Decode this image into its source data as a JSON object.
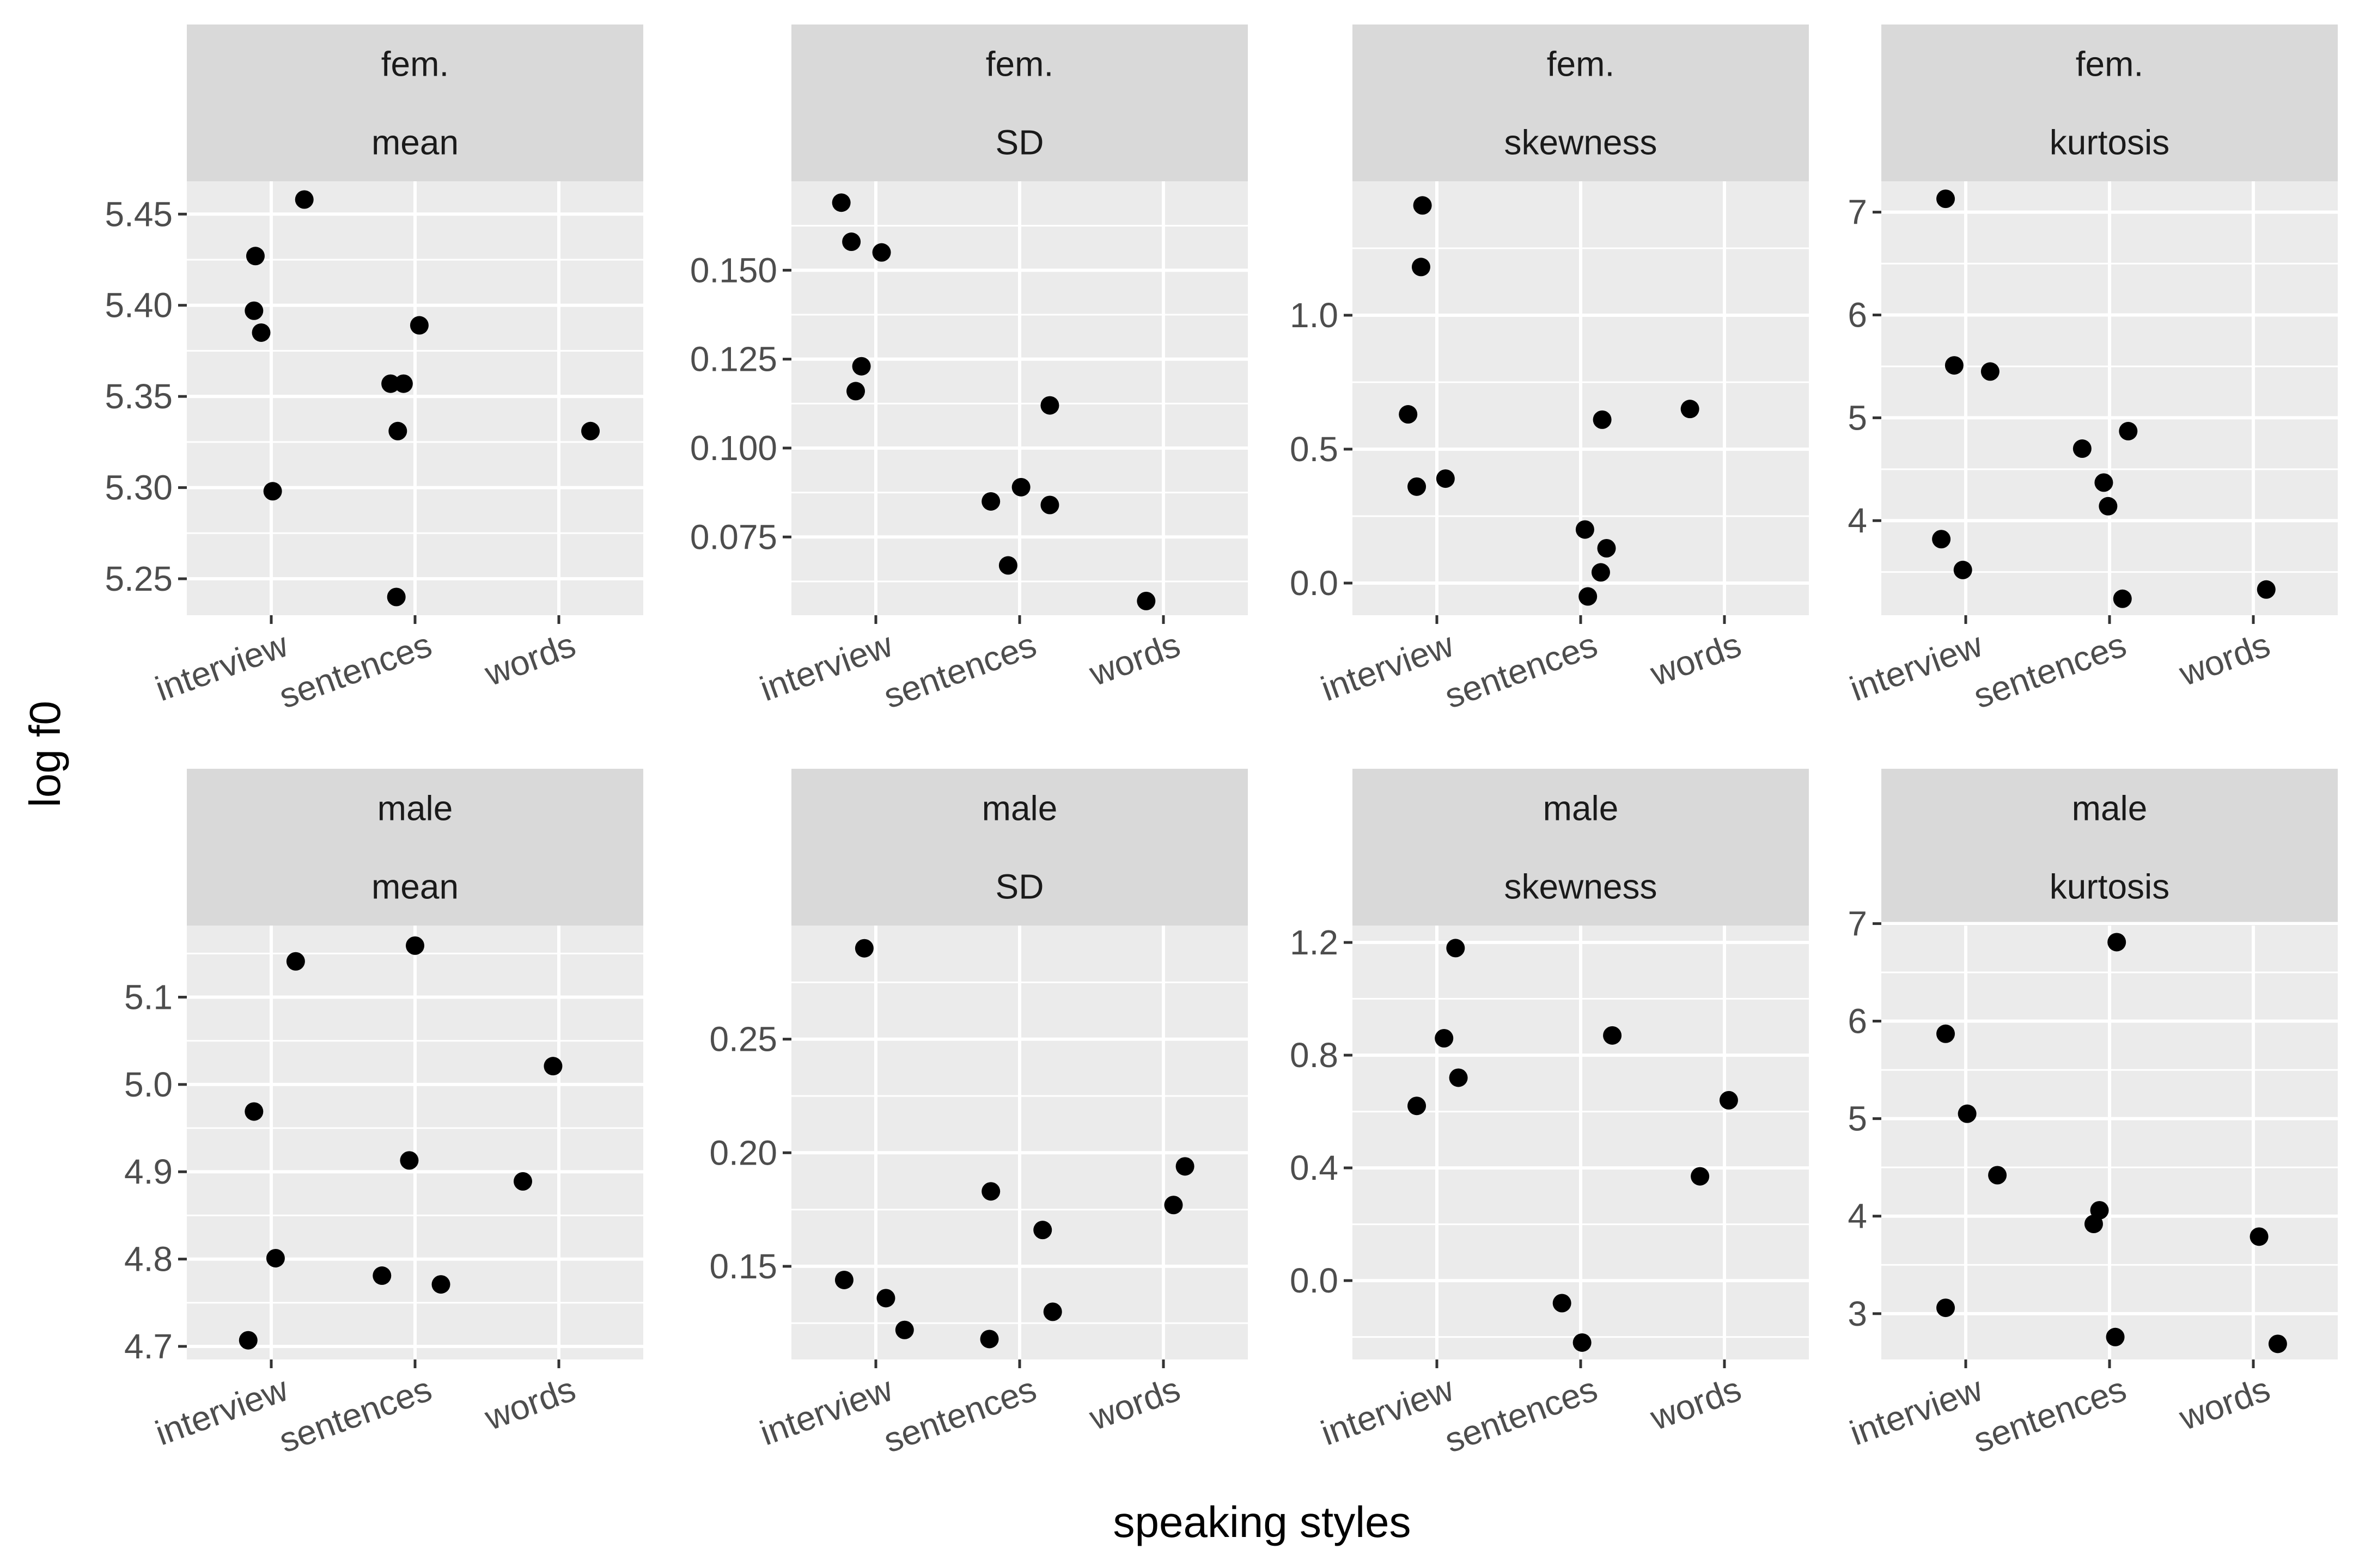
{
  "chart_data": {
    "type": "scatter",
    "xlabel": "speaking styles",
    "ylabel": "log f0",
    "categories": [
      "interview",
      "sentences",
      "words"
    ],
    "panels": [
      {
        "row_label": "fem.",
        "col_label": "mean",
        "ylim": [
          5.23,
          5.468
        ],
        "ticks": [
          5.25,
          5.3,
          5.35,
          5.4,
          5.45
        ],
        "tick_labels": [
          "5.25",
          "5.30",
          "5.35",
          "5.40",
          "5.45"
        ],
        "points": [
          {
            "category": "interview",
            "jitter": -0.11,
            "y": 5.427
          },
          {
            "category": "interview",
            "jitter": -0.12,
            "y": 5.397
          },
          {
            "category": "interview",
            "jitter": -0.07,
            "y": 5.385
          },
          {
            "category": "interview",
            "jitter": 0.23,
            "y": 5.458
          },
          {
            "category": "interview",
            "jitter": 0.01,
            "y": 5.298
          },
          {
            "category": "sentences",
            "jitter": -0.17,
            "y": 5.357
          },
          {
            "category": "sentences",
            "jitter": -0.08,
            "y": 5.357
          },
          {
            "category": "sentences",
            "jitter": -0.12,
            "y": 5.331
          },
          {
            "category": "sentences",
            "jitter": 0.03,
            "y": 5.389
          },
          {
            "category": "sentences",
            "jitter": -0.13,
            "y": 5.24
          },
          {
            "category": "words",
            "jitter": 0.22,
            "y": 5.331
          }
        ]
      },
      {
        "row_label": "fem.",
        "col_label": "SD",
        "ylim": [
          0.053,
          0.175
        ],
        "ticks": [
          0.075,
          0.1,
          0.125,
          0.15
        ],
        "tick_labels": [
          "0.075",
          "0.100",
          "0.125",
          "0.150"
        ],
        "points": [
          {
            "category": "interview",
            "jitter": -0.24,
            "y": 0.169
          },
          {
            "category": "interview",
            "jitter": -0.17,
            "y": 0.158
          },
          {
            "category": "interview",
            "jitter": 0.04,
            "y": 0.155
          },
          {
            "category": "interview",
            "jitter": -0.1,
            "y": 0.123
          },
          {
            "category": "interview",
            "jitter": -0.14,
            "y": 0.116
          },
          {
            "category": "sentences",
            "jitter": 0.21,
            "y": 0.112
          },
          {
            "category": "sentences",
            "jitter": -0.2,
            "y": 0.085
          },
          {
            "category": "sentences",
            "jitter": 0.01,
            "y": 0.089
          },
          {
            "category": "sentences",
            "jitter": 0.21,
            "y": 0.084
          },
          {
            "category": "sentences",
            "jitter": -0.08,
            "y": 0.067
          },
          {
            "category": "words",
            "jitter": -0.12,
            "y": 0.057
          }
        ]
      },
      {
        "row_label": "fem.",
        "col_label": "skewness",
        "ylim": [
          -0.12,
          1.5
        ],
        "ticks": [
          0.0,
          0.5,
          1.0
        ],
        "tick_labels": [
          "0.0",
          "0.5",
          "1.0"
        ],
        "points": [
          {
            "category": "interview",
            "jitter": -0.1,
            "y": 1.41
          },
          {
            "category": "interview",
            "jitter": -0.11,
            "y": 1.18
          },
          {
            "category": "interview",
            "jitter": -0.2,
            "y": 0.63
          },
          {
            "category": "interview",
            "jitter": -0.14,
            "y": 0.36
          },
          {
            "category": "interview",
            "jitter": 0.06,
            "y": 0.39
          },
          {
            "category": "sentences",
            "jitter": 0.15,
            "y": 0.61
          },
          {
            "category": "sentences",
            "jitter": 0.03,
            "y": 0.2
          },
          {
            "category": "sentences",
            "jitter": 0.18,
            "y": 0.13
          },
          {
            "category": "sentences",
            "jitter": 0.14,
            "y": 0.04
          },
          {
            "category": "sentences",
            "jitter": 0.05,
            "y": -0.05
          },
          {
            "category": "words",
            "jitter": -0.24,
            "y": 0.65
          }
        ]
      },
      {
        "row_label": "fem.",
        "col_label": "kurtosis",
        "ylim": [
          3.08,
          7.3
        ],
        "ticks": [
          4,
          5,
          6,
          7
        ],
        "tick_labels": [
          "4",
          "5",
          "6",
          "7"
        ],
        "points": [
          {
            "category": "interview",
            "jitter": -0.14,
            "y": 7.13
          },
          {
            "category": "interview",
            "jitter": -0.08,
            "y": 5.51
          },
          {
            "category": "interview",
            "jitter": 0.17,
            "y": 5.45
          },
          {
            "category": "interview",
            "jitter": -0.17,
            "y": 3.82
          },
          {
            "category": "interview",
            "jitter": -0.02,
            "y": 3.52
          },
          {
            "category": "sentences",
            "jitter": -0.19,
            "y": 4.7
          },
          {
            "category": "sentences",
            "jitter": 0.13,
            "y": 4.87
          },
          {
            "category": "sentences",
            "jitter": -0.04,
            "y": 4.37
          },
          {
            "category": "sentences",
            "jitter": -0.01,
            "y": 4.14
          },
          {
            "category": "sentences",
            "jitter": 0.09,
            "y": 3.24
          },
          {
            "category": "words",
            "jitter": 0.09,
            "y": 3.33
          }
        ]
      },
      {
        "row_label": "male",
        "col_label": "mean",
        "ylim": [
          4.685,
          5.182
        ],
        "ticks": [
          4.7,
          4.8,
          4.9,
          5.0,
          5.1
        ],
        "tick_labels": [
          "4.7",
          "4.8",
          "4.9",
          "5.0",
          "5.1"
        ],
        "points": [
          {
            "category": "interview",
            "jitter": 0.17,
            "y": 5.141
          },
          {
            "category": "interview",
            "jitter": -0.12,
            "y": 4.969
          },
          {
            "category": "interview",
            "jitter": 0.03,
            "y": 4.801
          },
          {
            "category": "interview",
            "jitter": -0.16,
            "y": 4.707
          },
          {
            "category": "sentences",
            "jitter": 0.0,
            "y": 5.159
          },
          {
            "category": "sentences",
            "jitter": -0.04,
            "y": 4.913
          },
          {
            "category": "sentences",
            "jitter": -0.23,
            "y": 4.781
          },
          {
            "category": "sentences",
            "jitter": 0.18,
            "y": 4.771
          },
          {
            "category": "words",
            "jitter": -0.04,
            "y": 5.021
          },
          {
            "category": "words",
            "jitter": -0.25,
            "y": 4.889
          }
        ]
      },
      {
        "row_label": "male",
        "col_label": "SD",
        "ylim": [
          0.109,
          0.3
        ],
        "ticks": [
          0.15,
          0.2,
          0.25
        ],
        "tick_labels": [
          "0.15",
          "0.20",
          "0.25"
        ],
        "points": [
          {
            "category": "interview",
            "jitter": -0.08,
            "y": 0.29
          },
          {
            "category": "interview",
            "jitter": -0.22,
            "y": 0.144
          },
          {
            "category": "interview",
            "jitter": 0.07,
            "y": 0.136
          },
          {
            "category": "interview",
            "jitter": 0.2,
            "y": 0.122
          },
          {
            "category": "sentences",
            "jitter": -0.2,
            "y": 0.183
          },
          {
            "category": "sentences",
            "jitter": 0.16,
            "y": 0.166
          },
          {
            "category": "sentences",
            "jitter": 0.23,
            "y": 0.13
          },
          {
            "category": "sentences",
            "jitter": -0.21,
            "y": 0.118
          },
          {
            "category": "words",
            "jitter": 0.15,
            "y": 0.194
          },
          {
            "category": "words",
            "jitter": 0.07,
            "y": 0.177
          }
        ]
      },
      {
        "row_label": "male",
        "col_label": "skewness",
        "ylim": [
          -0.28,
          1.26
        ],
        "ticks": [
          0.0,
          0.4,
          0.8,
          1.2
        ],
        "tick_labels": [
          "0.0",
          "0.4",
          "0.8",
          "1.2"
        ],
        "points": [
          {
            "category": "interview",
            "jitter": 0.13,
            "y": 1.18
          },
          {
            "category": "interview",
            "jitter": 0.05,
            "y": 0.86
          },
          {
            "category": "interview",
            "jitter": 0.15,
            "y": 0.72
          },
          {
            "category": "interview",
            "jitter": -0.14,
            "y": 0.62
          },
          {
            "category": "sentences",
            "jitter": 0.22,
            "y": 0.87
          },
          {
            "category": "sentences",
            "jitter": -0.13,
            "y": -0.08
          },
          {
            "category": "sentences",
            "jitter": 0.01,
            "y": -0.22
          },
          {
            "category": "words",
            "jitter": 0.03,
            "y": 0.64
          },
          {
            "category": "words",
            "jitter": -0.17,
            "y": 0.37
          }
        ]
      },
      {
        "row_label": "male",
        "col_label": "kurtosis",
        "ylim": [
          2.53,
          6.98
        ],
        "ticks": [
          3,
          4,
          5,
          6,
          7
        ],
        "tick_labels": [
          "3",
          "4",
          "5",
          "6",
          "7"
        ],
        "points": [
          {
            "category": "interview",
            "jitter": -0.14,
            "y": 5.87
          },
          {
            "category": "interview",
            "jitter": 0.01,
            "y": 5.05
          },
          {
            "category": "interview",
            "jitter": 0.22,
            "y": 4.42
          },
          {
            "category": "interview",
            "jitter": -0.14,
            "y": 3.06
          },
          {
            "category": "sentences",
            "jitter": 0.05,
            "y": 6.81
          },
          {
            "category": "sentences",
            "jitter": -0.07,
            "y": 4.06
          },
          {
            "category": "sentences",
            "jitter": -0.11,
            "y": 3.92
          },
          {
            "category": "sentences",
            "jitter": 0.04,
            "y": 2.76
          },
          {
            "category": "words",
            "jitter": 0.04,
            "y": 3.79
          },
          {
            "category": "words",
            "jitter": 0.17,
            "y": 2.69
          }
        ]
      }
    ]
  }
}
